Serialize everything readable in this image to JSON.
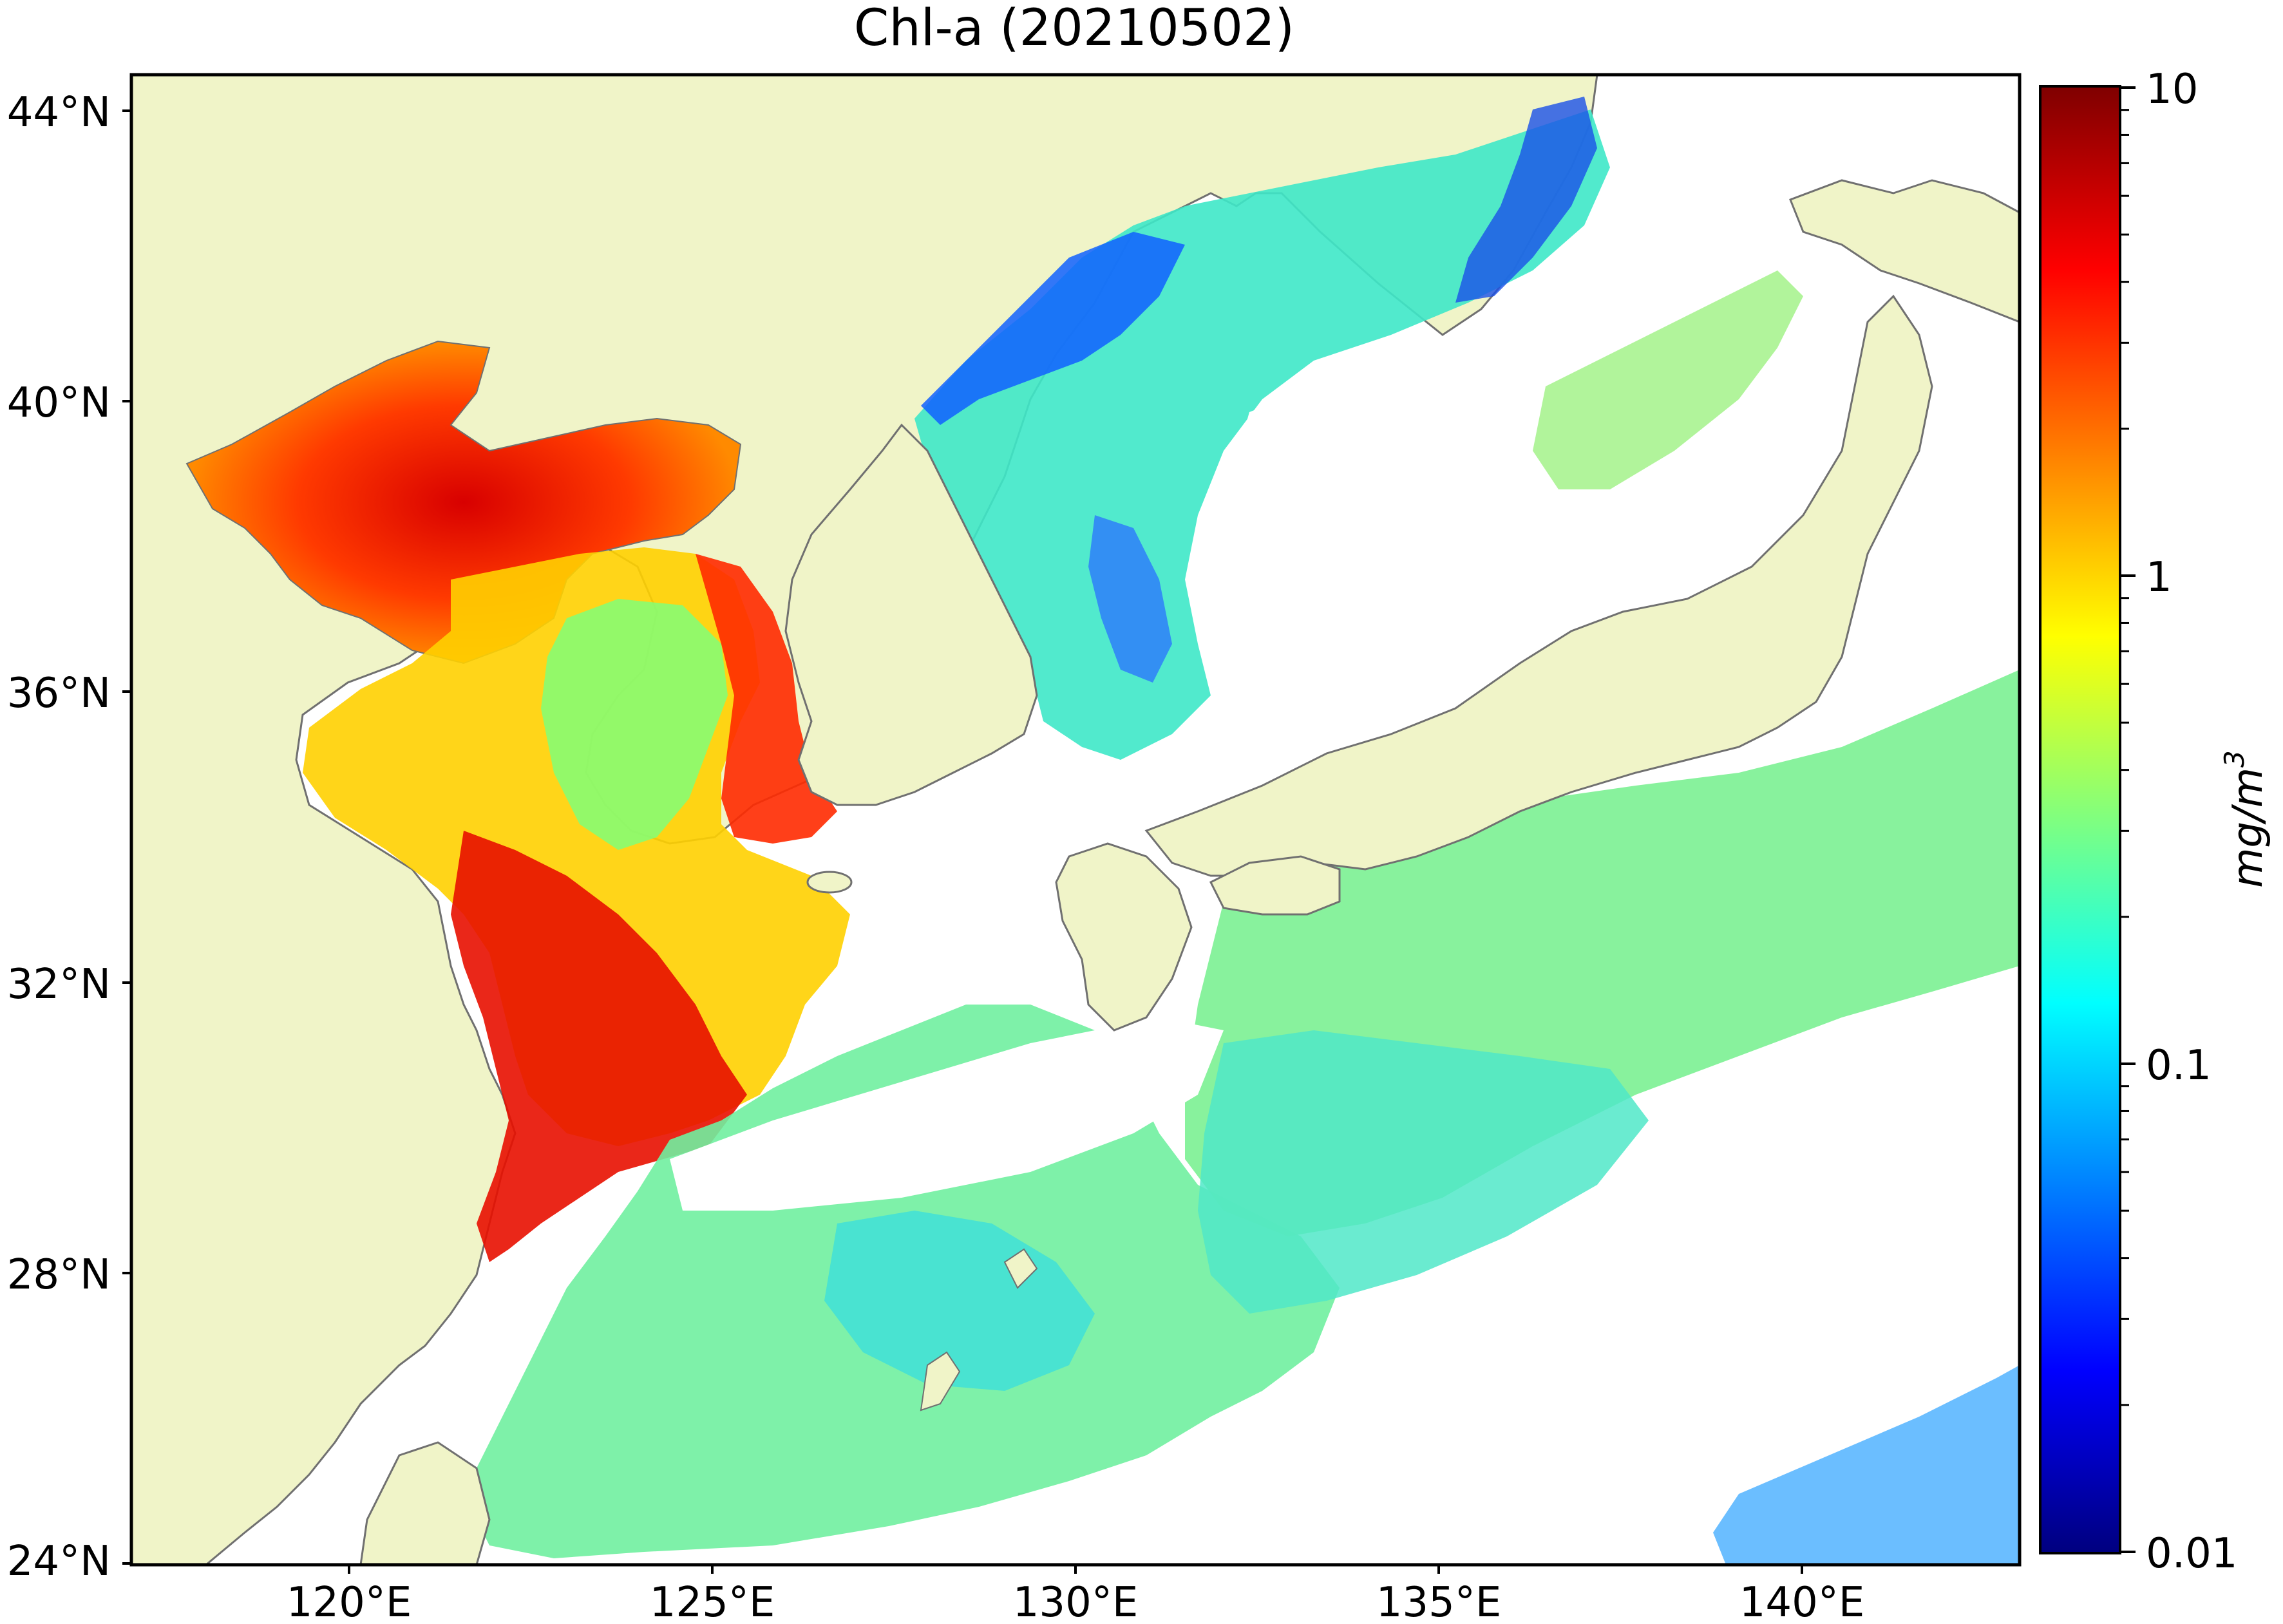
{
  "title": "Chl-a (20210502)",
  "map": {
    "lon_range": [
      117,
      143
    ],
    "lat_range": [
      24,
      44.5
    ],
    "lat_ticks": [
      {
        "value": 44,
        "label": "44°N"
      },
      {
        "value": 40,
        "label": "40°N"
      },
      {
        "value": 36,
        "label": "36°N"
      },
      {
        "value": 32,
        "label": "32°N"
      },
      {
        "value": 28,
        "label": "28°N"
      },
      {
        "value": 24,
        "label": "24°N"
      }
    ],
    "lon_ticks": [
      {
        "value": 120,
        "label": "120°E"
      },
      {
        "value": 125,
        "label": "125°E"
      },
      {
        "value": 130,
        "label": "130°E"
      },
      {
        "value": 135,
        "label": "135°E"
      },
      {
        "value": 140,
        "label": "140°E"
      }
    ],
    "colors": {
      "land": "#f0f4c8",
      "coast": "#707070",
      "missing": "#ffffff"
    }
  },
  "colorbar": {
    "label": "mg/m",
    "label_exponent": "3",
    "scale": "log",
    "range": [
      0.01,
      10
    ],
    "colormap": "jet",
    "ticks": [
      {
        "value": 10,
        "label": "10"
      },
      {
        "value": 1,
        "label": "1"
      },
      {
        "value": 0.1,
        "label": "0.1"
      },
      {
        "value": 0.01,
        "label": "0.01"
      }
    ]
  }
}
